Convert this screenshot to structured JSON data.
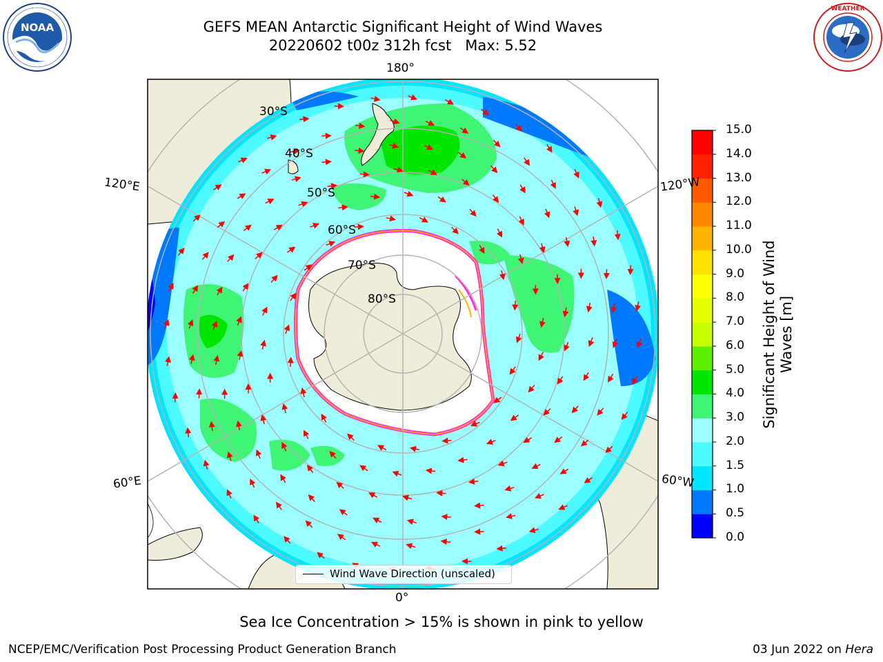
{
  "header": {
    "title_line1": "GEFS MEAN Antarctic Significant Height of Wind Waves",
    "title_line2": "20220602 t00z 312h fcst   Max: 5.52"
  },
  "logos": {
    "left": {
      "name": "noaa-logo",
      "text": "NOAA",
      "ring_text": "NATIONAL OCEANIC AND ATMOSPHERIC ADMINISTRATION · U.S. DEPARTMENT OF COMMERCE"
    },
    "right": {
      "name": "nws-logo",
      "ring_text": "NATIONAL WEATHER SERVICE"
    }
  },
  "map": {
    "longitude_labels": [
      "180°",
      "120°E",
      "120°W",
      "60°E",
      "60°W",
      "0°"
    ],
    "latitude_labels": [
      "30°S",
      "40°S",
      "50°S",
      "60°S",
      "70°S",
      "80°S"
    ],
    "legend_text": "Wind Wave Direction (unscaled)",
    "colors": {
      "land": "#efedd9",
      "ice": "#ffffff",
      "ice_edge": "#ff2ed8",
      "vectors": "#ff0000",
      "graticule": "#b4b4b4"
    }
  },
  "colorbar": {
    "label": "Significant Height of Wind Waves [m]",
    "ticks": [
      "0.0",
      "0.5",
      "1.0",
      "1.5",
      "2.0",
      "3.0",
      "4.0",
      "5.0",
      "6.0",
      "7.0",
      "8.0",
      "9.0",
      "10.0",
      "11.0",
      "12.0",
      "13.0",
      "14.0",
      "15.0"
    ],
    "colors": [
      "#0000ff",
      "#0079ff",
      "#00e6ff",
      "#4dfaff",
      "#9bffff",
      "#40f576",
      "#00e600",
      "#5ff000",
      "#c8ff00",
      "#e6ff00",
      "#ffff00",
      "#ffe100",
      "#ffb400",
      "#ff8700",
      "#ff5a00",
      "#ff2300",
      "#ff0000"
    ]
  },
  "note": "Sea Ice Concentration > 15% is shown in pink to yellow",
  "footer": {
    "left": "NCEP/EMC/Verification Post Processing Product Generation Branch",
    "right_date": "03 Jun 2022 on ",
    "right_machine": "Hera"
  }
}
